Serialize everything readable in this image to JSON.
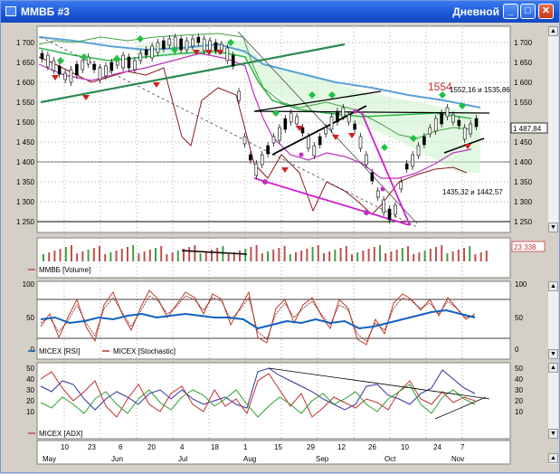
{
  "window": {
    "title": "ММВБ #3",
    "period": "Дневной",
    "minimize_symbol": "_",
    "maximize_symbol": "□",
    "close_symbol": "✕"
  },
  "price_pane": {
    "y_ticks": [
      "1 700",
      "1 650",
      "1 600",
      "1 550",
      "1 500",
      "1 450",
      "1 400",
      "1 350",
      "1 300",
      "1 250"
    ],
    "right_ticks": [
      "1 700",
      "1 650",
      "1 600",
      "1 550",
      "1 500",
      "1 450",
      "1 400",
      "1 350",
      "1 300",
      "1 250"
    ],
    "right_hidden_tick": "1 500",
    "current_value": "1 487,84",
    "annotation_high": "1554",
    "annotation_high_detail": "1552,16 и 1535,86",
    "annotation_low": "1435,32 и 1442,57"
  },
  "volume_pane": {
    "legend": "ММВБ [Volume]",
    "current_value": "23 338"
  },
  "osc_pane": {
    "left_ticks": [
      "100",
      "50",
      "0"
    ],
    "right_ticks": [
      "100",
      "50",
      "0"
    ],
    "legend_rsi": "MICEX [RSI]",
    "legend_stoch": "MICEX [Stochastic]",
    "rsi_color": "#1060c0",
    "stoch_color": "#c0392b"
  },
  "adx_pane": {
    "left_ticks": [
      "50",
      "40",
      "30",
      "20",
      "10"
    ],
    "right_ticks": [
      "50",
      "40",
      "30",
      "20",
      "10"
    ],
    "legend": "MICEX [ADX]"
  },
  "time_axis": {
    "days": [
      "10",
      "23",
      "6",
      "20",
      "4",
      "18",
      "1",
      "15",
      "29",
      "12",
      "26",
      "10",
      "24",
      "7"
    ],
    "months": [
      "May",
      "Jun",
      "Jul",
      "Aug",
      "Sep",
      "Oct",
      "Nov"
    ]
  },
  "icons": {
    "app": "chart-app-icon",
    "scroll_up": "▲",
    "scroll_down": "▼"
  }
}
